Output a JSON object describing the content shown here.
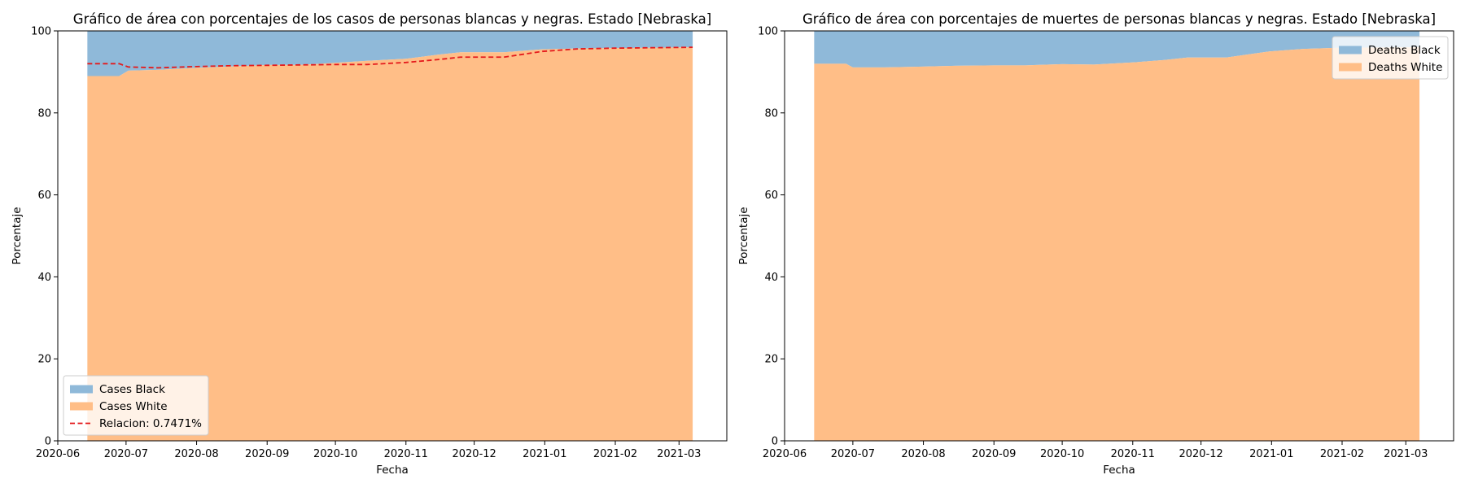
{
  "chart_data": [
    {
      "type": "area",
      "stacked": true,
      "percent": true,
      "title": "Gráfico de área con porcentajes de los casos de personas blancas y negras. Estado [Nebraska]",
      "xlabel": "Fecha",
      "ylabel": "Porcentaje",
      "xlim": [
        "2020-06-01",
        "2021-03-22"
      ],
      "ylim": [
        0,
        100
      ],
      "xticks": [
        "2020-06",
        "2020-07",
        "2020-08",
        "2020-09",
        "2020-10",
        "2020-11",
        "2020-12",
        "2021-01",
        "2021-02",
        "2021-03"
      ],
      "yticks": [
        0,
        20,
        40,
        60,
        80,
        100
      ],
      "legend": "lower-left",
      "x": [
        "2020-06-14",
        "2020-06-28",
        "2020-07-02",
        "2020-07-15",
        "2020-08-01",
        "2020-08-15",
        "2020-09-01",
        "2020-09-15",
        "2020-10-01",
        "2020-10-15",
        "2020-11-01",
        "2020-11-15",
        "2020-11-25",
        "2020-12-14",
        "2020-12-31",
        "2021-01-15",
        "2021-02-01",
        "2021-03-07"
      ],
      "series": [
        {
          "name": "Cases Black",
          "color": "#8fb9d9",
          "role": "top",
          "values": [
            11.0,
            11.0,
            9.7,
            9.5,
            9.0,
            8.7,
            8.3,
            8.3,
            7.8,
            7.3,
            6.8,
            5.8,
            5.2,
            5.2,
            4.5,
            4.3,
            4.2,
            4.0
          ]
        },
        {
          "name": "Cases White",
          "color": "#ffbe87",
          "role": "bottom",
          "values": [
            89.0,
            89.0,
            90.3,
            90.5,
            91.0,
            91.3,
            91.7,
            91.7,
            92.2,
            92.7,
            93.2,
            94.2,
            94.8,
            94.8,
            95.5,
            95.7,
            95.8,
            96.0
          ]
        }
      ],
      "reference_line": {
        "name": "Relacion: 0.7471%",
        "color": "#e41a1c",
        "style": "dashed",
        "values": [
          92.0,
          92.0,
          91.2,
          91.0,
          91.3,
          91.5,
          91.6,
          91.7,
          91.8,
          91.8,
          92.3,
          93.0,
          93.6,
          93.6,
          95.0,
          95.6,
          95.8,
          96.0
        ]
      }
    },
    {
      "type": "area",
      "stacked": true,
      "percent": true,
      "title": "Gráfico de área con porcentajes de muertes de personas blancas y negras. Estado [Nebraska]",
      "xlabel": "Fecha",
      "ylabel": "Porcentaje",
      "xlim": [
        "2020-06-01",
        "2021-03-22"
      ],
      "ylim": [
        0,
        100
      ],
      "xticks": [
        "2020-06",
        "2020-07",
        "2020-08",
        "2020-09",
        "2020-10",
        "2020-11",
        "2020-12",
        "2021-01",
        "2021-02",
        "2021-03"
      ],
      "yticks": [
        0,
        20,
        40,
        60,
        80,
        100
      ],
      "legend": "upper-right",
      "x": [
        "2020-06-14",
        "2020-06-28",
        "2020-07-01",
        "2020-07-15",
        "2020-08-01",
        "2020-08-15",
        "2020-09-01",
        "2020-09-15",
        "2020-10-01",
        "2020-10-15",
        "2020-11-01",
        "2020-11-15",
        "2020-11-25",
        "2020-12-12",
        "2020-12-31",
        "2021-01-15",
        "2021-02-01",
        "2021-03-07"
      ],
      "series": [
        {
          "name": "Deaths Black",
          "color": "#8fb9d9",
          "role": "top",
          "values": [
            8.0,
            8.0,
            8.9,
            8.9,
            8.7,
            8.5,
            8.4,
            8.4,
            8.1,
            8.2,
            7.7,
            7.1,
            6.5,
            6.5,
            5.0,
            4.4,
            4.1,
            4.0
          ]
        },
        {
          "name": "Deaths White",
          "color": "#ffbe87",
          "role": "bottom",
          "values": [
            92.0,
            92.0,
            91.1,
            91.1,
            91.3,
            91.5,
            91.6,
            91.6,
            91.9,
            91.8,
            92.3,
            92.9,
            93.5,
            93.5,
            95.0,
            95.6,
            95.9,
            96.0
          ]
        }
      ]
    }
  ]
}
